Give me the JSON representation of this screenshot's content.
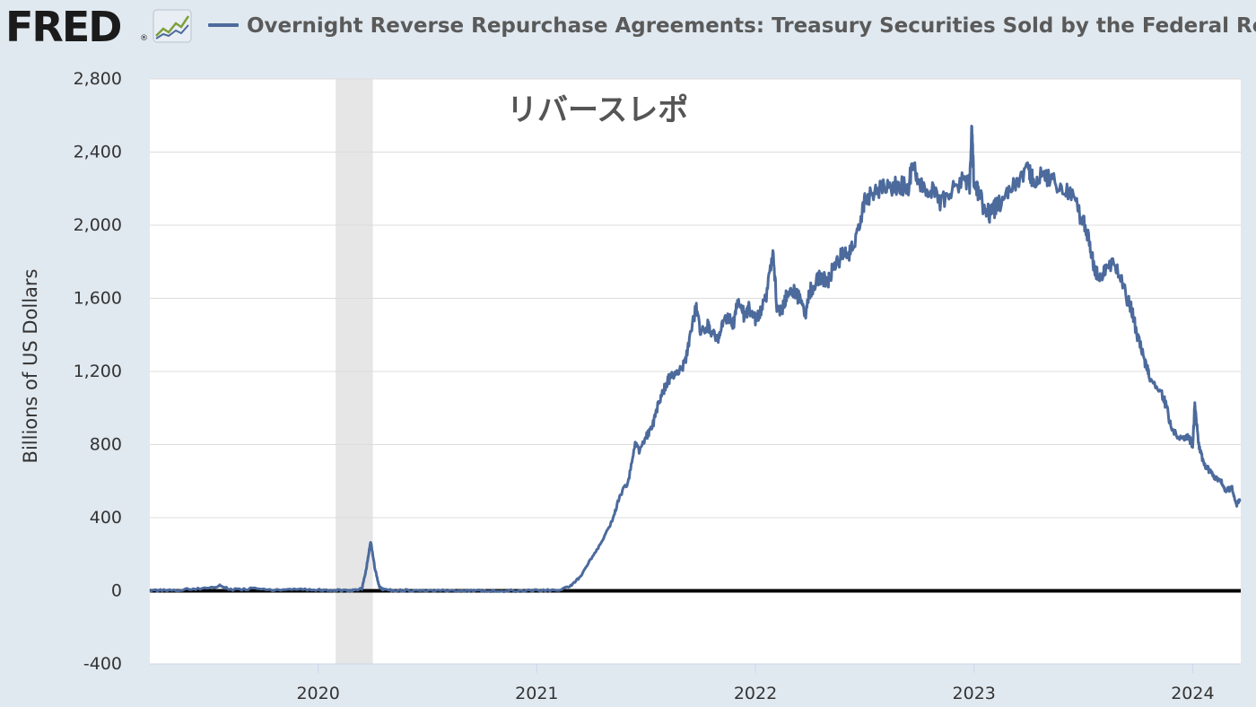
{
  "header": {
    "logo_text": "FRED",
    "logo_registered": "®",
    "legend_title": "Overnight Reverse Repurchase Agreements: Treasury Securities Sold by the Federal Reserve in"
  },
  "colors": {
    "series": "#4c6a9c",
    "page_background": "#e1e9f0",
    "plot_background": "#ffffff",
    "recession_shading": "#e6e6e6",
    "zero_line": "#000000"
  },
  "icons": [
    "fred-chart-icon"
  ],
  "chart_data": {
    "type": "line",
    "ylabel": "Billions of US Dollars",
    "annotation": "リバースレポ",
    "ylim": [
      -400,
      2800
    ],
    "xlim": [
      2019.23,
      2024.22
    ],
    "yticks": [
      -400,
      0,
      400,
      800,
      1200,
      1600,
      2000,
      2400,
      2800
    ],
    "ytick_labels": [
      "-400",
      "0",
      "400",
      "800",
      "1,200",
      "1,600",
      "2,000",
      "2,400",
      "2,800"
    ],
    "xticks": [
      2020,
      2021,
      2022,
      2023,
      2024
    ],
    "xtick_labels": [
      "2020",
      "2021",
      "2022",
      "2023",
      "2024"
    ],
    "grid": true,
    "recession_bands": [
      {
        "start": 2020.08,
        "end": 2020.25
      }
    ],
    "zero_line": true,
    "series": [
      {
        "x": [
          2019.23,
          2019.3,
          2019.4,
          2019.5,
          2019.55,
          2019.6,
          2019.7,
          2019.8,
          2019.9,
          2020.0,
          2020.05,
          2020.1,
          2020.15,
          2020.2,
          2020.22,
          2020.24,
          2020.26,
          2020.28,
          2020.3,
          2020.35,
          2020.4,
          2020.5,
          2020.6,
          2020.7,
          2020.8,
          2020.9,
          2021.0,
          2021.1,
          2021.15,
          2021.2,
          2021.25,
          2021.3,
          2021.35,
          2021.38,
          2021.42,
          2021.45,
          2021.47,
          2021.5,
          2021.53,
          2021.55,
          2021.58,
          2021.6,
          2021.62,
          2021.65,
          2021.68,
          2021.7,
          2021.73,
          2021.75,
          2021.78,
          2021.8,
          2021.83,
          2021.85,
          2021.88,
          2021.9,
          2021.92,
          2021.95,
          2021.97,
          2022.0,
          2022.02,
          2022.05,
          2022.08,
          2022.1,
          2022.13,
          2022.15,
          2022.18,
          2022.2,
          2022.23,
          2022.25,
          2022.28,
          2022.3,
          2022.33,
          2022.35,
          2022.38,
          2022.4,
          2022.42,
          2022.45,
          2022.48,
          2022.5,
          2022.55,
          2022.6,
          2022.65,
          2022.7,
          2022.72,
          2022.75,
          2022.8,
          2022.85,
          2022.9,
          2022.95,
          2022.98,
          2022.99,
          2023.0,
          2023.02,
          2023.05,
          2023.08,
          2023.1,
          2023.15,
          2023.2,
          2023.25,
          2023.27,
          2023.3,
          2023.35,
          2023.4,
          2023.45,
          2023.5,
          2023.53,
          2023.55,
          2023.58,
          2023.6,
          2023.65,
          2023.7,
          2023.72,
          2023.75,
          2023.78,
          2023.8,
          2023.85,
          2023.88,
          2023.9,
          2023.95,
          2023.98,
          2024.0,
          2024.01,
          2024.03,
          2024.05,
          2024.08,
          2024.1,
          2024.13,
          2024.15,
          2024.18,
          2024.2,
          2024.22
        ],
        "values": [
          0,
          2,
          8,
          14,
          30,
          5,
          12,
          3,
          10,
          5,
          2,
          2,
          1,
          10,
          120,
          270,
          120,
          20,
          5,
          3,
          2,
          1,
          0,
          0,
          0,
          1,
          2,
          5,
          20,
          80,
          180,
          270,
          400,
          520,
          600,
          810,
          760,
          840,
          900,
          1000,
          1100,
          1150,
          1180,
          1200,
          1250,
          1380,
          1560,
          1400,
          1450,
          1420,
          1380,
          1450,
          1500,
          1460,
          1600,
          1500,
          1550,
          1480,
          1520,
          1600,
          1880,
          1520,
          1560,
          1650,
          1640,
          1600,
          1510,
          1640,
          1700,
          1720,
          1680,
          1750,
          1800,
          1850,
          1830,
          1900,
          2000,
          2150,
          2190,
          2210,
          2220,
          2200,
          2350,
          2230,
          2200,
          2120,
          2200,
          2250,
          2220,
          2540,
          2210,
          2180,
          2080,
          2060,
          2100,
          2150,
          2250,
          2300,
          2240,
          2280,
          2250,
          2200,
          2150,
          2020,
          1900,
          1760,
          1720,
          1760,
          1780,
          1600,
          1540,
          1380,
          1260,
          1180,
          1100,
          1010,
          900,
          820,
          840,
          800,
          1020,
          780,
          700,
          650,
          620,
          600,
          550,
          560,
          470,
          500
        ]
      }
    ]
  }
}
